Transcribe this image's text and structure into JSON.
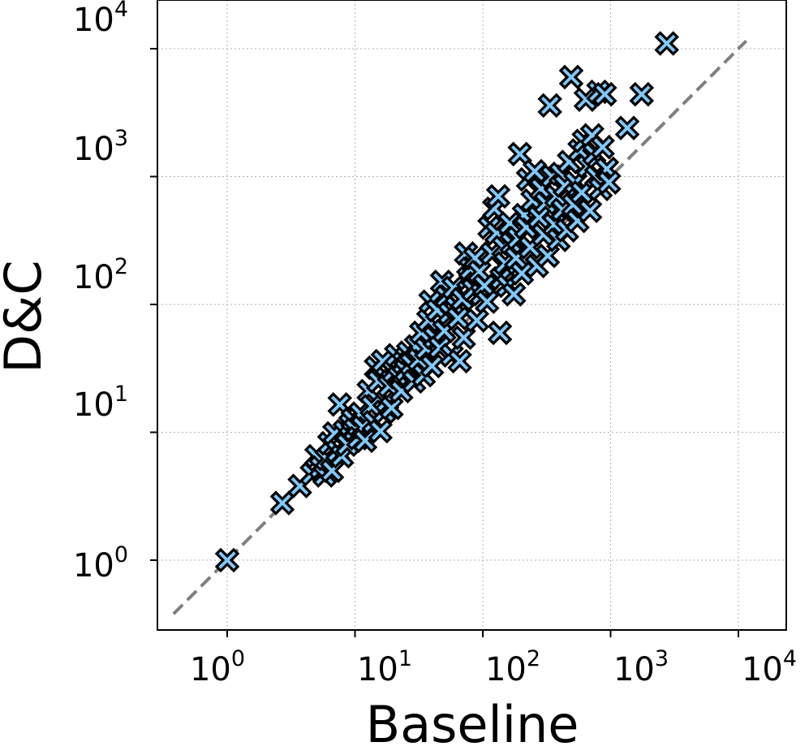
{
  "chart_data": {
    "type": "scatter",
    "title": "",
    "xlabel": "Baseline",
    "ylabel": "D&C",
    "xscale": "log",
    "yscale": "log",
    "xlim": [
      0.38,
      11500
    ],
    "ylim": [
      0.38,
      11500
    ],
    "x_ticks": [
      {
        "base": "10",
        "exp": "0"
      },
      {
        "base": "10",
        "exp": "1"
      },
      {
        "base": "10",
        "exp": "2"
      },
      {
        "base": "10",
        "exp": "3"
      },
      {
        "base": "10",
        "exp": "4"
      }
    ],
    "y_ticks": [
      {
        "base": "10",
        "exp": "0"
      },
      {
        "base": "10",
        "exp": "1"
      },
      {
        "base": "10",
        "exp": "2"
      },
      {
        "base": "10",
        "exp": "3"
      },
      {
        "base": "10",
        "exp": "4"
      }
    ],
    "grid": true,
    "reference_line": "y = x",
    "marker": "X",
    "marker_color": "#7fc8f8",
    "marker_edge_color": "#000000",
    "reference_line_color": "#808080",
    "series": [
      {
        "points": [
          [
            1.0,
            1.0
          ],
          [
            2.7,
            2.8
          ],
          [
            3.7,
            3.8
          ],
          [
            4.6,
            4.7
          ],
          [
            5.0,
            6.5
          ],
          [
            5.4,
            5.3
          ],
          [
            5.8,
            4.6
          ],
          [
            6.0,
            6.2
          ],
          [
            6.3,
            8.2
          ],
          [
            6.6,
            5.0
          ],
          [
            6.9,
            9.8
          ],
          [
            7.3,
            7.1
          ],
          [
            7.6,
            16.5
          ],
          [
            7.9,
            6.5
          ],
          [
            8.3,
            10.2
          ],
          [
            8.7,
            8.0
          ],
          [
            9.2,
            11.5
          ],
          [
            9.6,
            12.6
          ],
          [
            10.0,
            10.5
          ],
          [
            10.6,
            9.0
          ],
          [
            11.0,
            14.0
          ],
          [
            11.5,
            11.0
          ],
          [
            12.0,
            8.6
          ],
          [
            12.8,
            21.0
          ],
          [
            13.5,
            16.0
          ],
          [
            14.0,
            12.0
          ],
          [
            14.6,
            32.0
          ],
          [
            15.2,
            25.0
          ],
          [
            15.8,
            10.2
          ],
          [
            16.5,
            36.0
          ],
          [
            17.0,
            14.5
          ],
          [
            17.8,
            17.5
          ],
          [
            18.5,
            23.0
          ],
          [
            19.3,
            15.5
          ],
          [
            20.0,
            30.0
          ],
          [
            21.0,
            40.0
          ],
          [
            22.0,
            27.0
          ],
          [
            23.0,
            21.0
          ],
          [
            24.0,
            35.0
          ],
          [
            25.0,
            30.5
          ],
          [
            26.0,
            42.0
          ],
          [
            27.5,
            34.0
          ],
          [
            29.0,
            25.0
          ],
          [
            30.0,
            47.0
          ],
          [
            31.5,
            37.0
          ],
          [
            33.0,
            60.0
          ],
          [
            34.5,
            28.0
          ],
          [
            36.0,
            45.0
          ],
          [
            37.5,
            75.0
          ],
          [
            39.0,
            105.0
          ],
          [
            40.0,
            33.0
          ],
          [
            42.0,
            55.0
          ],
          [
            44.0,
            90.0
          ],
          [
            46.0,
            46.0
          ],
          [
            48.0,
            150.0
          ],
          [
            50.0,
            62.0
          ],
          [
            52.0,
            115.0
          ],
          [
            55.0,
            85.0
          ],
          [
            57.0,
            40.0
          ],
          [
            59.0,
            135.0
          ],
          [
            62.0,
            95.0
          ],
          [
            64.0,
            78.0
          ],
          [
            66.0,
            36.0
          ],
          [
            69.0,
            110.0
          ],
          [
            71.0,
            55.0
          ],
          [
            74.0,
            250.0
          ],
          [
            77.0,
            160.0
          ],
          [
            80.0,
            190.0
          ],
          [
            84.0,
            130.0
          ],
          [
            87.0,
            230.0
          ],
          [
            90.0,
            75.0
          ],
          [
            94.0,
            180.0
          ],
          [
            98.0,
            120.0
          ],
          [
            103.0,
            140.0
          ],
          [
            108.0,
            105.0
          ],
          [
            113.0,
            400.0
          ],
          [
            118.0,
            250.0
          ],
          [
            123.0,
            560.0
          ],
          [
            128.0,
            360.0
          ],
          [
            132.0,
            700.0
          ],
          [
            136.0,
            60.0
          ],
          [
            140.0,
            160.0
          ],
          [
            145.0,
            280.0
          ],
          [
            150.0,
            210.0
          ],
          [
            156.0,
            140.0
          ],
          [
            162.0,
            430.0
          ],
          [
            168.0,
            300.0
          ],
          [
            175.0,
            120.0
          ],
          [
            182.0,
            230.0
          ],
          [
            188.0,
            330.0
          ],
          [
            195.0,
            1500.0
          ],
          [
            202.0,
            175.0
          ],
          [
            210.0,
            500.0
          ],
          [
            218.0,
            400.0
          ],
          [
            226.0,
            950.0
          ],
          [
            235.0,
            280.0
          ],
          [
            245.0,
            650.0
          ],
          [
            255.0,
            1100.0
          ],
          [
            265.0,
            200.0
          ],
          [
            275.0,
            480.0
          ],
          [
            286.0,
            800.0
          ],
          [
            298.0,
            350.0
          ],
          [
            310.0,
            620.0
          ],
          [
            322.0,
            240.0
          ],
          [
            335.0,
            3600.0
          ],
          [
            348.0,
            1000.0
          ],
          [
            362.0,
            420.0
          ],
          [
            376.0,
            700.0
          ],
          [
            391.0,
            320.0
          ],
          [
            406.0,
            1050.0
          ],
          [
            422.0,
            550.0
          ],
          [
            438.0,
            850.0
          ],
          [
            455.0,
            380.0
          ],
          [
            473.0,
            1300.0
          ],
          [
            492.0,
            6000.0
          ],
          [
            510.0,
            600.0
          ],
          [
            530.0,
            900.0
          ],
          [
            550.0,
            450.0
          ],
          [
            572.0,
            1600.0
          ],
          [
            594.0,
            750.0
          ],
          [
            617.0,
            1900.0
          ],
          [
            640.0,
            4000.0
          ],
          [
            665.0,
            1200.0
          ],
          [
            690.0,
            540.0
          ],
          [
            717.0,
            2100.0
          ],
          [
            745.0,
            1500.0
          ],
          [
            773.0,
            1000.0
          ],
          [
            803.0,
            4600.0
          ],
          [
            834.0,
            800.0
          ],
          [
            866.0,
            1700.0
          ],
          [
            900.0,
            4400.0
          ],
          [
            935.0,
            1150.0
          ],
          [
            970.0,
            900.0
          ],
          [
            1350.0,
            2400.0
          ],
          [
            1750.0,
            4400.0
          ],
          [
            2750.0,
            11000.0
          ]
        ]
      }
    ]
  }
}
